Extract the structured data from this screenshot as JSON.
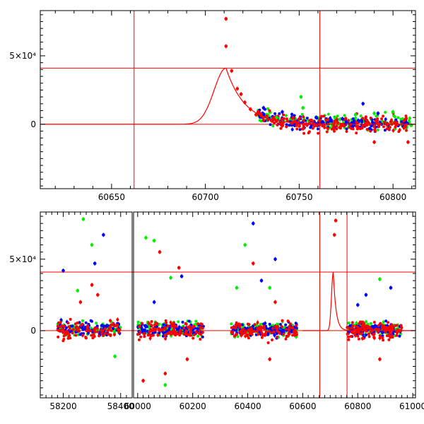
{
  "chart_data": [
    {
      "type": "scatter",
      "panel": "top",
      "title": "",
      "xlabel": "",
      "ylabel": "",
      "xlim": [
        60612,
        60812
      ],
      "ylim": [
        -47000,
        83000
      ],
      "x_ticks": [
        60650,
        60700,
        60750,
        60800
      ],
      "x_tick_labels": [
        "60650",
        "60700",
        "60750",
        "60800"
      ],
      "y_ticks": [
        0,
        50000
      ],
      "y_tick_labels": [
        "0",
        "5×10⁴"
      ],
      "vlines": [
        60662,
        60761
      ],
      "hlines": [
        0,
        41000
      ],
      "model_curve": {
        "peak_x": 60711,
        "peak_y": 41000,
        "rise_width": 9,
        "decay_tau": 10,
        "color": "#ff0000"
      },
      "series": [
        {
          "name": "red",
          "color": "#ff0000",
          "points": [
            [
              60711,
              77000
            ],
            [
              60711,
              57000
            ],
            [
              60714,
              39000
            ],
            [
              60717,
              26000
            ],
            [
              60719,
              22000
            ],
            [
              60721,
              16000
            ],
            [
              60724,
              11000
            ],
            [
              60727,
              7000
            ],
            [
              60731,
              3000
            ],
            [
              60790,
              -13000
            ],
            [
              60808,
              -13000
            ]
          ]
        },
        {
          "name": "green",
          "color": "#00ee00",
          "points": [
            [
              60738,
              5000
            ],
            [
              60751,
              20000
            ],
            [
              60752,
              12000
            ],
            [
              60769,
              5000
            ],
            [
              60790,
              8000
            ],
            [
              60800,
              9000
            ],
            [
              60780,
              7000
            ]
          ]
        },
        {
          "name": "blue",
          "color": "#0000ff",
          "points": [
            [
              60731,
              12000
            ],
            [
              60741,
              9000
            ],
            [
              60784,
              15000
            ],
            [
              60792,
              8000
            ],
            [
              60759,
              5000
            ],
            [
              60773,
              4000
            ]
          ]
        }
      ]
    },
    {
      "type": "scatter",
      "panel": "bottom",
      "title": "",
      "xlabel": "",
      "ylabel": "",
      "broken_axis": true,
      "segments": [
        {
          "xlim": [
            58120,
            58440
          ],
          "x_ticks": [
            58200,
            58400
          ],
          "x_tick_labels": [
            "58200",
            "58400"
          ],
          "obs_range": [
            58180,
            58400
          ]
        },
        {
          "xlim": [
            59985,
            61010
          ],
          "x_ticks": [
            60000,
            60200,
            60400,
            60600,
            60800,
            61000
          ],
          "x_tick_labels": [
            "60000",
            "60200",
            "60400",
            "60600",
            "60800",
            "61000"
          ],
          "obs_ranges": [
            [
              60000,
              60240
            ],
            [
              60340,
              60580
            ],
            [
              60760,
              60960
            ]
          ]
        }
      ],
      "ylim": [
        -47000,
        83000
      ],
      "y_ticks": [
        0,
        50000
      ],
      "y_tick_labels": [
        "0",
        "5×10⁴"
      ],
      "vlines": [
        60662,
        60761
      ],
      "hlines": [
        0,
        41000
      ],
      "model_curve": {
        "peak_x": 60711,
        "peak_y": 41000,
        "rise_width": 9,
        "decay_tau": 10,
        "color": "#ff0000"
      },
      "series": [
        {
          "name": "red",
          "color": "#ff0000",
          "points": [
            [
              58300,
              32000
            ],
            [
              58320,
              25000
            ],
            [
              58260,
              20000
            ],
            [
              60080,
              55000
            ],
            [
              60150,
              44000
            ],
            [
              60420,
              47000
            ],
            [
              60500,
              20000
            ],
            [
              60720,
              77000
            ],
            [
              60715,
              67000
            ],
            [
              60100,
              -30000
            ],
            [
              60180,
              -20000
            ],
            [
              60480,
              -20000
            ],
            [
              60020,
              -35000
            ],
            [
              60880,
              -20000
            ]
          ]
        },
        {
          "name": "green",
          "color": "#00ee00",
          "points": [
            [
              58270,
              78000
            ],
            [
              58300,
              60000
            ],
            [
              58250,
              28000
            ],
            [
              60030,
              65000
            ],
            [
              60060,
              63000
            ],
            [
              60120,
              37000
            ],
            [
              60390,
              60000
            ],
            [
              60360,
              30000
            ],
            [
              60480,
              30000
            ],
            [
              60880,
              36000
            ],
            [
              58380,
              -18000
            ],
            [
              60100,
              -38000
            ]
          ]
        },
        {
          "name": "blue",
          "color": "#0000ff",
          "points": [
            [
              58340,
              67000
            ],
            [
              58310,
              47000
            ],
            [
              58200,
              42000
            ],
            [
              60420,
              75000
            ],
            [
              60500,
              50000
            ],
            [
              60450,
              35000
            ],
            [
              60160,
              38000
            ],
            [
              60060,
              20000
            ],
            [
              60830,
              25000
            ],
            [
              60920,
              30000
            ],
            [
              60800,
              18000
            ]
          ]
        }
      ]
    }
  ]
}
